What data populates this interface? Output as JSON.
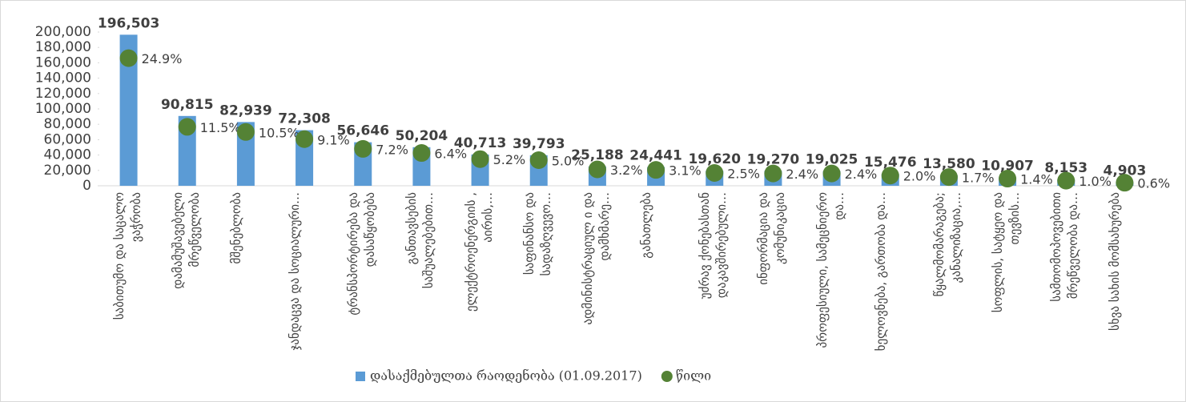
{
  "chart_data": {
    "type": "bar",
    "categories": [
      "საბითუმო და საცალო ვაჭრობა",
      "დამამუშავებელი მრეწველობა",
      "მშენებლობა",
      "ჯანდაცვა და სოციალური…",
      "ტრანსპორტირება და დასაწყობება",
      "განთავსების საშუალებებით…",
      "ელექტროენერგიის , აირის,…",
      "საფინანსო და სადაზღვევო…",
      "ადმინისტრაციულ ი და დამხმარე…",
      "განათლება",
      "უძრავ ქონებასთან დაკავშირებული…",
      "ინფორმაცია და კომუნიკაცია",
      "პროფესიული, სამეცნიერო და…",
      "ხელოვნება, გართობა და…",
      "წყალმომარაგება; კანალიზაცია,…",
      "სოფლის, სატყეო და თევზის…",
      "სამთომოპოვებითი მრეწველობა და…",
      "სხვა სახის მომსახურება"
    ],
    "series": [
      {
        "name": "დასაქმებულთა რაოდენობა (01.09.2017)",
        "color": "#5b9bd5",
        "type": "bar",
        "values": [
          196503,
          90815,
          82939,
          72308,
          56646,
          50204,
          40713,
          39793,
          25188,
          24441,
          19620,
          19270,
          19025,
          15476,
          13580,
          10907,
          8153,
          4903
        ],
        "value_labels": [
          "196,503",
          "90,815",
          "82,939",
          "72,308",
          "56,646",
          "50,204",
          "40,713",
          "39,793",
          "25,188",
          "24,441",
          "19,620",
          "19,270",
          "19,025",
          "15,476",
          "13,580",
          "10,907",
          "8,153",
          "4,903"
        ]
      },
      {
        "name": "წილი",
        "color": "#548235",
        "type": "scatter",
        "axis": "y2",
        "values": [
          24.9,
          11.5,
          10.5,
          9.1,
          7.2,
          6.4,
          5.2,
          5.0,
          3.2,
          3.1,
          2.5,
          2.4,
          2.4,
          2.0,
          1.7,
          1.4,
          1.0,
          0.6
        ],
        "value_labels": [
          "24.9%",
          "11.5%",
          "10.5%",
          "9.1%",
          "7.2%",
          "6.4%",
          "5.2%",
          "5.0%",
          "3.2%",
          "3.1%",
          "2.5%",
          "2.4%",
          "2.4%",
          "2.0%",
          "1.7%",
          "1.4%",
          "1.0%",
          "0.6%"
        ]
      }
    ],
    "ylim": [
      0,
      200000
    ],
    "yticks": [
      {
        "value": 0,
        "label": "0"
      },
      {
        "value": 20000,
        "label": "20,000"
      },
      {
        "value": 40000,
        "label": "40,000"
      },
      {
        "value": 60000,
        "label": "60,000"
      },
      {
        "value": 80000,
        "label": "80,000"
      },
      {
        "value": 100000,
        "label": "100,000"
      },
      {
        "value": 120000,
        "label": "120,000"
      },
      {
        "value": 140000,
        "label": "140,000"
      },
      {
        "value": 160000,
        "label": "160,000"
      },
      {
        "value": 180000,
        "label": "180,000"
      },
      {
        "value": 200000,
        "label": "200,000"
      }
    ],
    "y2lim": [
      0,
      30
    ],
    "legend": "bottom"
  }
}
